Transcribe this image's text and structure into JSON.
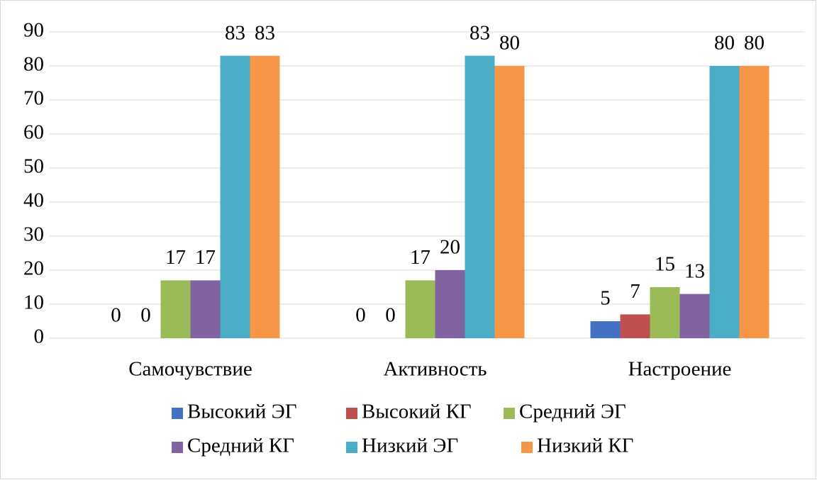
{
  "chart_data": {
    "type": "bar",
    "categories": [
      "Самочувствие",
      "Активность",
      "Настроение"
    ],
    "series": [
      {
        "name": "Высокий ЭГ",
        "color": "#4472c4",
        "values": [
          0,
          0,
          5
        ]
      },
      {
        "name": "Высокий КГ",
        "color": "#c0504d",
        "values": [
          0,
          0,
          7
        ]
      },
      {
        "name": "Средний ЭГ",
        "color": "#9bbb59",
        "values": [
          17,
          17,
          15
        ]
      },
      {
        "name": "Средний КГ",
        "color": "#8064a2",
        "values": [
          17,
          20,
          13
        ]
      },
      {
        "name": "Низкий ЭГ",
        "color": "#4bacc6",
        "values": [
          83,
          83,
          80
        ]
      },
      {
        "name": "Низкий КГ",
        "color": "#f79646",
        "values": [
          83,
          80,
          80
        ]
      }
    ],
    "ylim": [
      0,
      90
    ],
    "yticks": [
      0,
      10,
      20,
      30,
      40,
      50,
      60,
      70,
      80,
      90
    ],
    "grid": true,
    "legend": "bottom"
  }
}
